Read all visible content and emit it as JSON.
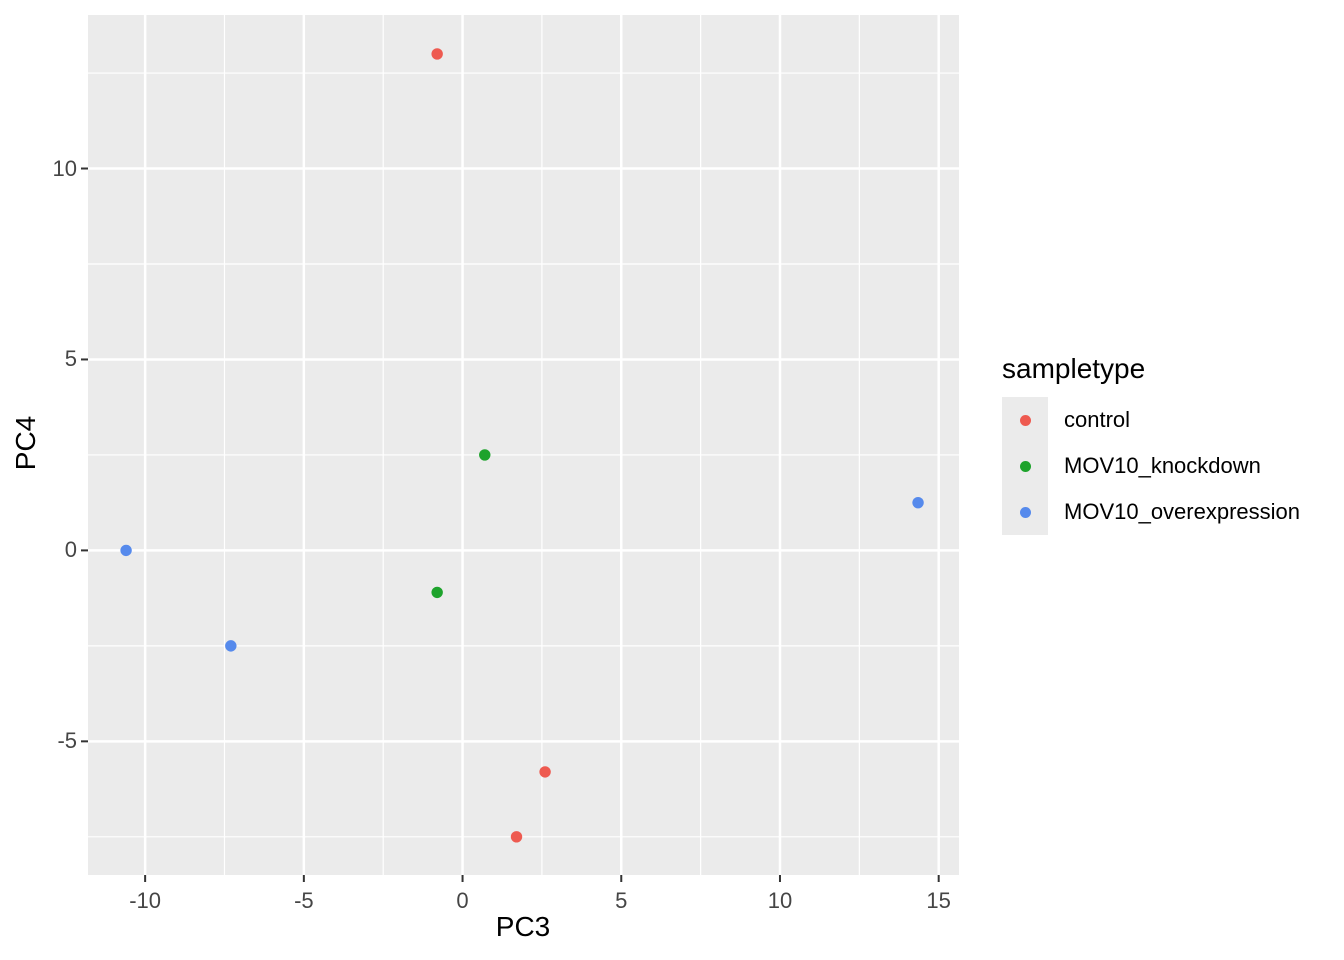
{
  "chart_data": {
    "type": "scatter",
    "title": "",
    "xlabel": "PC3",
    "ylabel": "PC4",
    "xlim": [
      -11.8,
      15.64
    ],
    "ylim": [
      -8.5,
      14.02
    ],
    "x_ticks": [
      -10,
      -5,
      0,
      5,
      10,
      15
    ],
    "y_ticks": [
      -5,
      0,
      5,
      10
    ],
    "grid": "major+minor, minor at half-step",
    "legend_position": "right",
    "legend_title": "sampletype",
    "series": [
      {
        "name": "control",
        "color": "#EE5A50",
        "points": [
          [
            -0.8,
            13.0
          ],
          [
            2.6,
            -5.8
          ],
          [
            1.7,
            -7.5
          ]
        ]
      },
      {
        "name": "MOV10_knockdown",
        "color": "#1EA32C",
        "points": [
          [
            0.7,
            2.5
          ],
          [
            -0.8,
            -1.1
          ]
        ]
      },
      {
        "name": "MOV10_overexpression",
        "color": "#568AEC",
        "points": [
          [
            -10.6,
            0.0
          ],
          [
            -7.3,
            -2.5
          ],
          [
            14.35,
            1.25
          ]
        ]
      }
    ]
  },
  "style": {
    "page_bg": "#FFFFFF",
    "panel_bg": "#EBEBEB",
    "gridline": "#FFFFFF",
    "tick_mark": "#333333",
    "axis_text": "#454545",
    "title_text": "#000000",
    "legend_key_bg": "#EBEBEB"
  }
}
